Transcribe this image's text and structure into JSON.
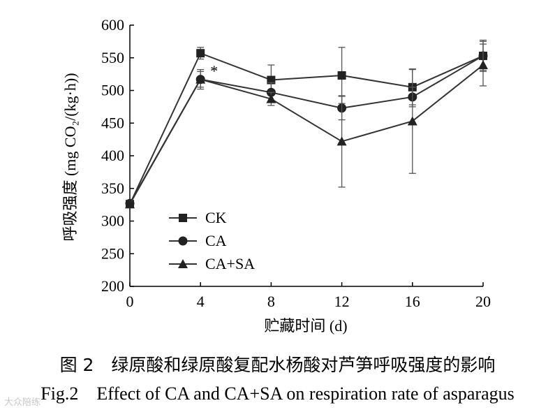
{
  "chart_data": {
    "type": "line",
    "x": [
      0,
      4,
      8,
      12,
      16,
      20
    ],
    "xlabel": "贮藏时间 (d)",
    "ylabel": "呼吸强度 (mg CO₂/(kg·h))",
    "xlim": [
      0,
      20
    ],
    "ylim": [
      200,
      600
    ],
    "xticks": [
      "0",
      "4",
      "8",
      "12",
      "16",
      "20"
    ],
    "yticks": [
      "200",
      "250",
      "300",
      "350",
      "400",
      "450",
      "500",
      "550",
      "600"
    ],
    "grid": false,
    "legend_position": "bottom-left",
    "series": [
      {
        "name": "CK",
        "marker": "square",
        "values": [
          326,
          557,
          516,
          523,
          505,
          553
        ],
        "errors": [
          0,
          9,
          23,
          43,
          27,
          24
        ]
      },
      {
        "name": "CA",
        "marker": "circle",
        "values": [
          327,
          517,
          497,
          473,
          490,
          553
        ],
        "errors": [
          0,
          15,
          15,
          18,
          15,
          22
        ]
      },
      {
        "name": "CA+SA",
        "marker": "triangle",
        "values": [
          326,
          517,
          487,
          422,
          453,
          539
        ],
        "errors": [
          0,
          12,
          10,
          70,
          80,
          32
        ]
      }
    ],
    "annotations": [
      {
        "x": 4,
        "text": "*"
      }
    ]
  },
  "caption": {
    "cn": "图 2　绿原酸和绿原酸复配水杨酸对芦笋呼吸强度的影响",
    "en": "Fig.2　Effect of CA and CA+SA on respiration rate of asparagus"
  },
  "watermark": "大众陪练"
}
